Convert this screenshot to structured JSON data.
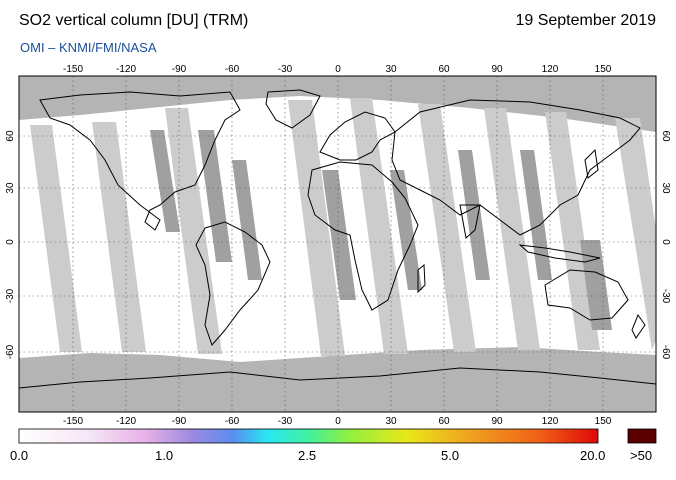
{
  "header": {
    "title": "SO2 vertical column [DU] (TRM)",
    "date": "19 September 2019",
    "source": "OMI  –  KNMI/FMI/NASA"
  },
  "map": {
    "lon_ticks": [
      "-150",
      "-120",
      "-90",
      "-60",
      "-30",
      "0",
      "30",
      "60",
      "90",
      "120",
      "150"
    ],
    "lat_ticks": [
      "60",
      "30",
      "0",
      "-30",
      "-60"
    ],
    "colors": {
      "background": "#ffffff",
      "no_data": "#b4b4b4",
      "swath_dark": "#a0a0a0",
      "swath_light": "#cccccc",
      "land_outline": "#000000"
    }
  },
  "colorbar": {
    "labels": [
      "0.0",
      "1.0",
      "2.5",
      "5.0",
      "20.0"
    ],
    "overflow_label": ">50",
    "overflow_color": "#5a0000",
    "gradient": [
      "#ffffff",
      "#f6e6f6",
      "#e6b0e6",
      "#9a8ae0",
      "#5a8ef0",
      "#28e8f0",
      "#40f0a0",
      "#90f040",
      "#e8e818",
      "#f0a020",
      "#f06018",
      "#e00808"
    ]
  }
}
